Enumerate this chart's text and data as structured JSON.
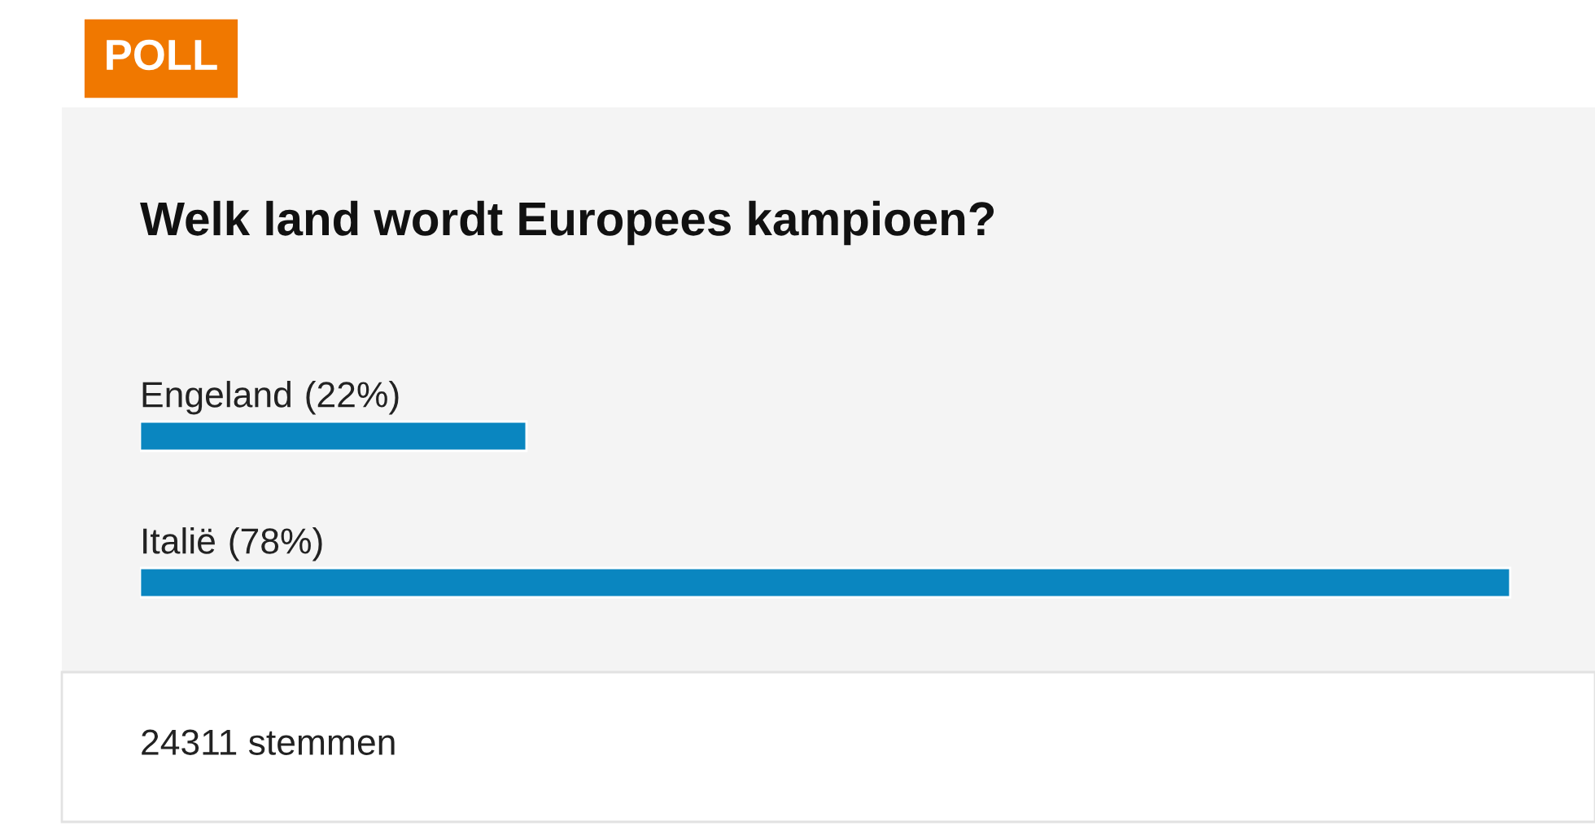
{
  "chart_data": {
    "type": "bar",
    "orientation": "horizontal",
    "title": "Welk land wordt Europees kampioen?",
    "categories": [
      "Engeland",
      "Italië"
    ],
    "values": [
      22,
      78
    ],
    "value_labels": [
      "(22%)",
      "(78%)"
    ],
    "color": "#0a86c0",
    "tick_labels": false,
    "legend": false,
    "annotations": [
      "POLL",
      "24311 stemmen"
    ]
  }
}
